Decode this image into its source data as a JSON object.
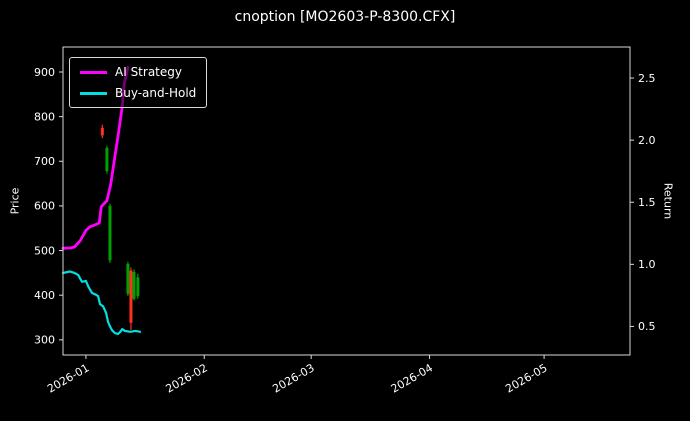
{
  "title": "cnoption [MO2603-P-8300.CFX]",
  "colors": {
    "background": "#000000",
    "text": "#ffffff",
    "spine": "#d9d9d9",
    "ai_strategy": "#ff00ff",
    "buy_and_hold": "#00e0e0",
    "candle_up": "#00a000",
    "candle_down": "#ff3020"
  },
  "axes": {
    "left_label": "Price",
    "right_label": "Return",
    "x_domain_days": [
      0,
      148.5
    ],
    "price_domain": [
      266,
      956
    ],
    "return_domain": [
      0.27,
      2.75
    ],
    "x_ticks": [
      {
        "label": "2026-01",
        "day": 6
      },
      {
        "label": "2026-02",
        "day": 37
      },
      {
        "label": "2026-03",
        "day": 65
      },
      {
        "label": "2026-04",
        "day": 96
      },
      {
        "label": "2026-05",
        "day": 126
      }
    ],
    "left_ticks": [
      {
        "label": "300",
        "value": 300
      },
      {
        "label": "400",
        "value": 400
      },
      {
        "label": "500",
        "value": 500
      },
      {
        "label": "600",
        "value": 600
      },
      {
        "label": "700",
        "value": 700
      },
      {
        "label": "800",
        "value": 800
      },
      {
        "label": "900",
        "value": 900
      }
    ],
    "right_ticks": [
      {
        "label": "0.5",
        "value": 0.5
      },
      {
        "label": "1.0",
        "value": 1.0
      },
      {
        "label": "1.5",
        "value": 1.5
      },
      {
        "label": "2.0",
        "value": 2.0
      },
      {
        "label": "2.5",
        "value": 2.5
      }
    ]
  },
  "legend": {
    "items": [
      {
        "label": "AI Strategy",
        "color": "#ff00ff"
      },
      {
        "label": "Buy-and-Hold",
        "color": "#00e0e0"
      }
    ]
  },
  "chart_data": {
    "type": "line",
    "title": "cnoption [MO2603-P-8300.CFX]",
    "xlabel": "",
    "ylabel_left": "Price",
    "ylabel_right": "Return",
    "x_unit": "days (day 0 = left edge of plot, ticks mark month starts 2026-01 .. 2026-05)",
    "grid": false,
    "legend_position": "upper-left",
    "series": [
      {
        "name": "AI Strategy",
        "axis": "price",
        "color": "#ff00ff",
        "points": [
          [
            0,
            505
          ],
          [
            2,
            506
          ],
          [
            3,
            508
          ],
          [
            4.5,
            522
          ],
          [
            6,
            545
          ],
          [
            7,
            553
          ],
          [
            8.5,
            558
          ],
          [
            9.5,
            562
          ],
          [
            10,
            598
          ],
          [
            10.5,
            603
          ],
          [
            11.5,
            612
          ],
          [
            12.5,
            648
          ],
          [
            13.5,
            705
          ],
          [
            14.5,
            762
          ],
          [
            15.5,
            822
          ],
          [
            16,
            872
          ],
          [
            17,
            910
          ]
        ]
      },
      {
        "name": "Buy-and-Hold",
        "axis": "price",
        "color": "#00e0e0",
        "points": [
          [
            0,
            450
          ],
          [
            1.8,
            453
          ],
          [
            3,
            450
          ],
          [
            4,
            445
          ],
          [
            4.5,
            437
          ],
          [
            5,
            430
          ],
          [
            6,
            432
          ],
          [
            6.6,
            420
          ],
          [
            7.6,
            405
          ],
          [
            8.4,
            402
          ],
          [
            9.2,
            398
          ],
          [
            9.7,
            380
          ],
          [
            10.5,
            375
          ],
          [
            11.3,
            360
          ],
          [
            11.8,
            340
          ],
          [
            12.3,
            330
          ],
          [
            12.8,
            322
          ],
          [
            13.6,
            315
          ],
          [
            14.4,
            313
          ],
          [
            15,
            318
          ],
          [
            15.5,
            324
          ],
          [
            16.2,
            320
          ],
          [
            17.6,
            318
          ],
          [
            19,
            320
          ],
          [
            20.2,
            318
          ]
        ]
      }
    ],
    "candles": {
      "axis": "price",
      "up_color": "#00a000",
      "down_color": "#ff3020",
      "columns": [
        "day",
        "open",
        "high",
        "low",
        "close"
      ],
      "data": [
        [
          10.3,
          775,
          782,
          752,
          758
        ],
        [
          11.5,
          678,
          735,
          672,
          730
        ],
        [
          12.3,
          478,
          605,
          472,
          600
        ],
        [
          17.0,
          403,
          475,
          398,
          470
        ],
        [
          17.8,
          455,
          462,
          322,
          338
        ],
        [
          18.6,
          392,
          458,
          388,
          452
        ],
        [
          19.6,
          398,
          448,
          392,
          440
        ]
      ]
    }
  }
}
